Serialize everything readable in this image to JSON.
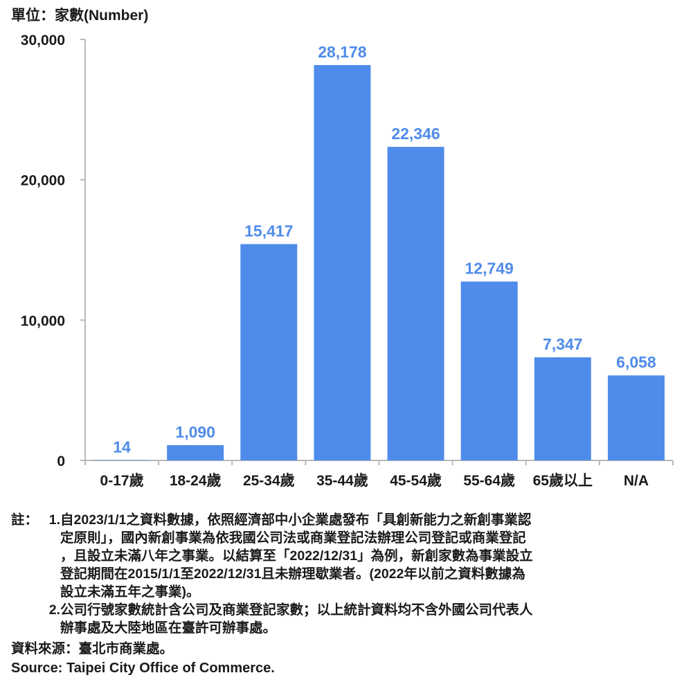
{
  "unit_label": "單位：家數(Number)",
  "chart_data": {
    "type": "bar",
    "categories": [
      "0-17歲",
      "18-24歲",
      "25-34歲",
      "35-44歲",
      "45-54歲",
      "55-64歲",
      "65歲以上",
      "N/A"
    ],
    "values": [
      14,
      1090,
      15417,
      28178,
      22346,
      12749,
      7347,
      6058
    ],
    "value_labels": [
      "14",
      "1,090",
      "15,417",
      "28,178",
      "22,346",
      "12,749",
      "7,347",
      "6,058"
    ],
    "ylim": [
      0,
      30000
    ],
    "yticks": [
      0,
      10000,
      20000,
      30000
    ],
    "ytick_labels": [
      "0",
      "10,000",
      "20,000",
      "30,000"
    ],
    "grid": false,
    "colors": {
      "bar": "#4f8bea",
      "value_label": "#4f8bea",
      "axis": "#b8b8b8"
    }
  },
  "notes": {
    "prefix": "註：",
    "items": [
      {
        "num": "1.",
        "lines": [
          "自2023/1/1之資料數據，依照經濟部中小企業處發布「具創新能力之新創事業認",
          "定原則」，國內新創事業為依我國公司法或商業登記法辦理公司登記或商業登記",
          "，且設立未滿八年之事業。以結算至「2022/12/31」為例，新創家數為事業設立",
          "登記期間在2015/1/1至2022/12/31且未辦理歇業者。(2022年以前之資料數據為",
          "設立未滿五年之事業)。"
        ]
      },
      {
        "num": "2.",
        "lines": [
          "公司行號家數統計含公司及商業登記家數；以上統計資料均不含外國公司代表人",
          "辦事處及大陸地區在臺許可辦事處。"
        ]
      }
    ],
    "source": "資料來源：臺北市商業處。",
    "source_en": "Source: Taipei City Office of Commerce."
  }
}
